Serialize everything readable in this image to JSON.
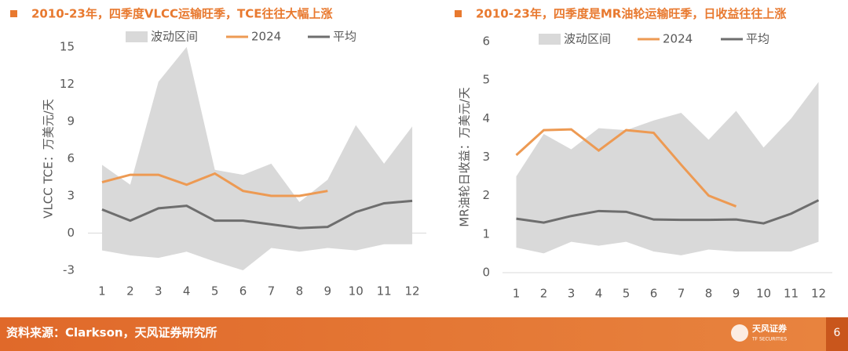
{
  "chart_data": [
    {
      "type": "line",
      "title": "2010-23年，四季度VLCC运输旺季，TCE往往大幅上涨",
      "ylabel": "VLCC TCE：万美元/天",
      "categories": [
        "1",
        "2",
        "3",
        "4",
        "5",
        "6",
        "7",
        "8",
        "9",
        "10",
        "11",
        "12"
      ],
      "ylim": [
        -3,
        15
      ],
      "yticks": [
        -3,
        0,
        3,
        6,
        9,
        12,
        15
      ],
      "band": {
        "name": "波动区间",
        "color": "#d9d9d9",
        "high": [
          5.5,
          3.9,
          12.2,
          15,
          5.1,
          4.7,
          5.6,
          2.5,
          4.3,
          8.7,
          5.6,
          8.6
        ],
        "low": [
          -1.4,
          -1.8,
          -2.0,
          -1.5,
          -2.3,
          -3.0,
          -1.2,
          -1.5,
          -1.2,
          -1.4,
          -0.9,
          -0.9
        ]
      },
      "series": [
        {
          "name": "2024",
          "color": "#ed9a53",
          "values": [
            4.1,
            4.7,
            4.7,
            3.9,
            4.8,
            3.4,
            3.0,
            3.0,
            3.4,
            null,
            null,
            null
          ]
        },
        {
          "name": "平均",
          "color": "#6e6e6e",
          "values": [
            1.9,
            1.0,
            2.0,
            2.2,
            1.0,
            1.0,
            0.7,
            0.4,
            0.5,
            1.7,
            2.4,
            2.6
          ]
        }
      ]
    },
    {
      "type": "line",
      "title": "2010-23年，四季度是MR油轮运输旺季，日收益往往上涨",
      "ylabel": "MR油轮日收益：万美元/天",
      "categories": [
        "1",
        "2",
        "3",
        "4",
        "5",
        "6",
        "7",
        "8",
        "9",
        "10",
        "11",
        "12"
      ],
      "ylim": [
        0,
        6
      ],
      "yticks": [
        0,
        1,
        2,
        3,
        4,
        5,
        6
      ],
      "band": {
        "name": "波动区间",
        "color": "#d9d9d9",
        "high": [
          2.5,
          3.6,
          3.2,
          3.75,
          3.7,
          3.95,
          4.15,
          3.45,
          4.2,
          3.25,
          4.0,
          4.95
        ],
        "low": [
          0.65,
          0.5,
          0.8,
          0.7,
          0.8,
          0.55,
          0.45,
          0.6,
          0.55,
          0.55,
          0.55,
          0.8
        ]
      },
      "series": [
        {
          "name": "2024",
          "color": "#ed9a53",
          "values": [
            3.05,
            3.7,
            3.72,
            3.17,
            3.7,
            3.63,
            2.8,
            2.0,
            1.72,
            null,
            null,
            null
          ]
        },
        {
          "name": "平均",
          "color": "#6e6e6e",
          "values": [
            1.4,
            1.3,
            1.47,
            1.6,
            1.58,
            1.38,
            1.37,
            1.37,
            1.38,
            1.28,
            1.53,
            1.88
          ]
        }
      ]
    }
  ],
  "footer": {
    "source": "资料来源：Clarkson，天风证券研究所",
    "logo": "天风证券",
    "logo_sub": "TF SECURITIES",
    "page": "6"
  }
}
